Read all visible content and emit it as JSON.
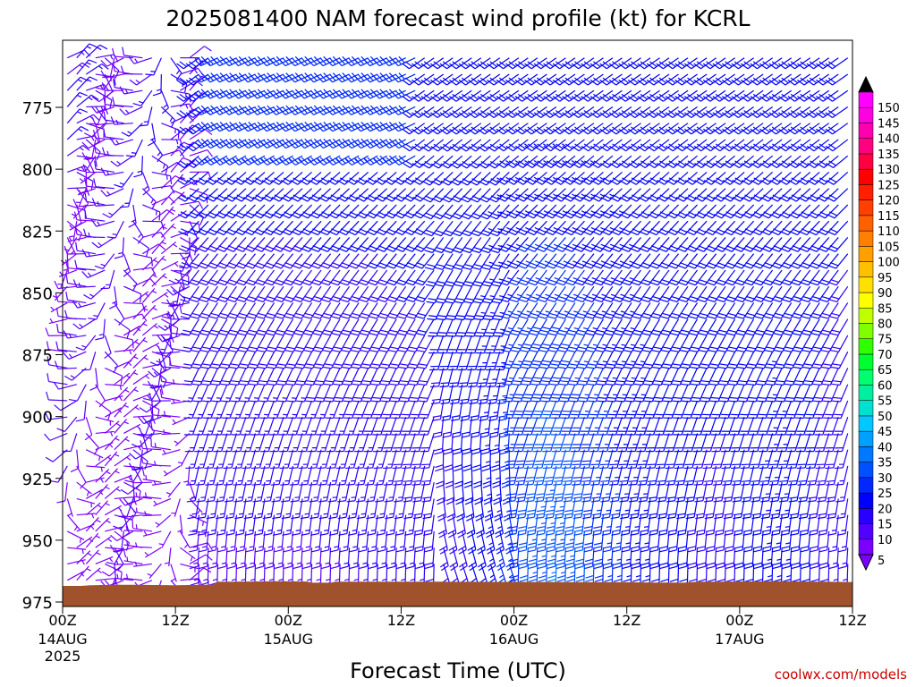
{
  "chart_data": {
    "type": "wind-barb time-height profile",
    "title": "2025081400 NAM forecast wind profile (kt) for KCRL",
    "xlabel": "Forecast Time (UTC)",
    "ylabel": "",
    "credit": "coolwx.com/models",
    "x_ticks": [
      {
        "label": "00Z",
        "sub1": "14AUG",
        "sub2": "2025",
        "hour": 0
      },
      {
        "label": "12Z",
        "sub1": "",
        "sub2": "",
        "hour": 12
      },
      {
        "label": "00Z",
        "sub1": "15AUG",
        "sub2": "",
        "hour": 24
      },
      {
        "label": "12Z",
        "sub1": "",
        "sub2": "",
        "hour": 36
      },
      {
        "label": "00Z",
        "sub1": "16AUG",
        "sub2": "",
        "hour": 48
      },
      {
        "label": "12Z",
        "sub1": "",
        "sub2": "",
        "hour": 60
      },
      {
        "label": "00Z",
        "sub1": "17AUG",
        "sub2": "",
        "hour": 72
      },
      {
        "label": "12Z",
        "sub1": "",
        "sub2": "",
        "hour": 84
      }
    ],
    "x_range_hours": [
      0,
      84
    ],
    "y_axis": {
      "unit": "hPa",
      "range": [
        755,
        977
      ],
      "ticks": [
        775,
        800,
        825,
        850,
        875,
        900,
        925,
        950,
        975
      ],
      "tick_labels": [
        "775",
        "800",
        "825",
        "850",
        "875",
        "900",
        "925",
        "950",
        "975"
      ]
    },
    "time_step_hours": 1,
    "level_step_hpa": 6.6,
    "wind_speed_units": "kt",
    "colorbar": {
      "levels": [
        5,
        10,
        15,
        20,
        25,
        30,
        35,
        40,
        45,
        50,
        55,
        60,
        65,
        70,
        75,
        80,
        85,
        90,
        95,
        100,
        105,
        110,
        115,
        120,
        125,
        130,
        135,
        140,
        145,
        150
      ],
      "labels": [
        "5",
        "10",
        "15",
        "20",
        "25",
        "30",
        "35",
        "40",
        "45",
        "50",
        "55",
        "60",
        "65",
        "70",
        "75",
        "80",
        "85",
        "90",
        "95",
        "100",
        "105",
        "110",
        "115",
        "120",
        "125",
        "130",
        "135",
        "140",
        "145",
        "150"
      ],
      "colors": [
        "#7a00ff",
        "#5200ff",
        "#2800ff",
        "#0000ff",
        "#0028ff",
        "#0050ff",
        "#0078ff",
        "#00a0ff",
        "#00c8ff",
        "#00e0d0",
        "#00f0a0",
        "#00ff70",
        "#00ff30",
        "#30ff00",
        "#80ff00",
        "#c0ff00",
        "#ffff00",
        "#ffe000",
        "#ffc000",
        "#ffa000",
        "#ff8000",
        "#ff6000",
        "#ff4000",
        "#ff2000",
        "#ff0000",
        "#ff0040",
        "#ff0080",
        "#ff00b0",
        "#ff00e0",
        "#ff00ff"
      ],
      "under_color": "#7a00ff",
      "over_color": "#000000"
    },
    "terrain_color": "#a0522d",
    "surface_pressure_hpa": [
      {
        "hour": 0,
        "p": 968.5
      },
      {
        "hour": 2,
        "p": 968.5
      },
      {
        "hour": 3,
        "p": 968.2
      },
      {
        "hour": 6,
        "p": 968.0
      },
      {
        "hour": 12,
        "p": 968.2
      },
      {
        "hour": 16,
        "p": 968.0
      },
      {
        "hour": 16.5,
        "p": 966.8
      },
      {
        "hour": 20,
        "p": 966.7
      },
      {
        "hour": 23,
        "p": 966.6
      },
      {
        "hour": 26,
        "p": 966.7
      },
      {
        "hour": 26.5,
        "p": 967.2
      },
      {
        "hour": 28.5,
        "p": 967.2
      },
      {
        "hour": 29,
        "p": 966.8
      },
      {
        "hour": 40,
        "p": 966.8
      },
      {
        "hour": 52,
        "p": 966.9
      },
      {
        "hour": 60,
        "p": 967.0
      },
      {
        "hour": 66,
        "p": 967.2
      },
      {
        "hour": 67.5,
        "p": 966.8
      },
      {
        "hour": 76,
        "p": 966.6
      },
      {
        "hour": 84,
        "p": 966.9
      }
    ]
  }
}
